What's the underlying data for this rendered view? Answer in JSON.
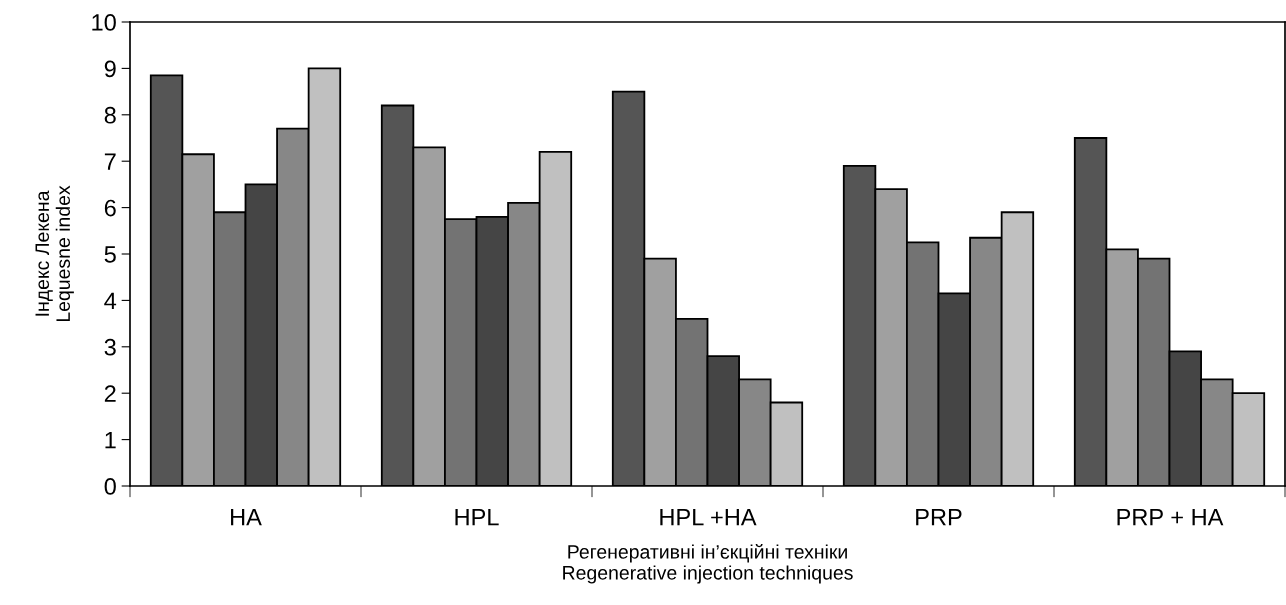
{
  "chart_data": {
    "type": "bar",
    "categories": [
      "HA",
      "HPL",
      "HPL +HA",
      "PRP",
      "PRP + HA"
    ],
    "series": [
      {
        "color": "#555555",
        "values": [
          8.85,
          8.2,
          8.5,
          6.9,
          7.5
        ]
      },
      {
        "color": "#a0a0a0",
        "values": [
          7.15,
          7.3,
          4.9,
          6.4,
          5.1
        ]
      },
      {
        "color": "#737373",
        "values": [
          5.9,
          5.75,
          3.6,
          5.25,
          4.9
        ]
      },
      {
        "color": "#454545",
        "values": [
          6.5,
          5.8,
          2.8,
          4.15,
          2.9
        ]
      },
      {
        "color": "#878787",
        "values": [
          7.7,
          6.1,
          2.3,
          5.35,
          2.3
        ]
      },
      {
        "color": "#c0c0c0",
        "values": [
          9.0,
          7.2,
          1.8,
          5.9,
          2.0
        ]
      }
    ],
    "ylabel": "Індекс Лекена\nLequesne index",
    "xlabel": "Регенеративні ін’єкційні техніки\nRegenerative injection techniques",
    "ylim": [
      0,
      10
    ],
    "yticks": [
      0,
      1,
      2,
      3,
      4,
      5,
      6,
      7,
      8,
      9,
      10
    ],
    "grid": false,
    "legend": false
  }
}
